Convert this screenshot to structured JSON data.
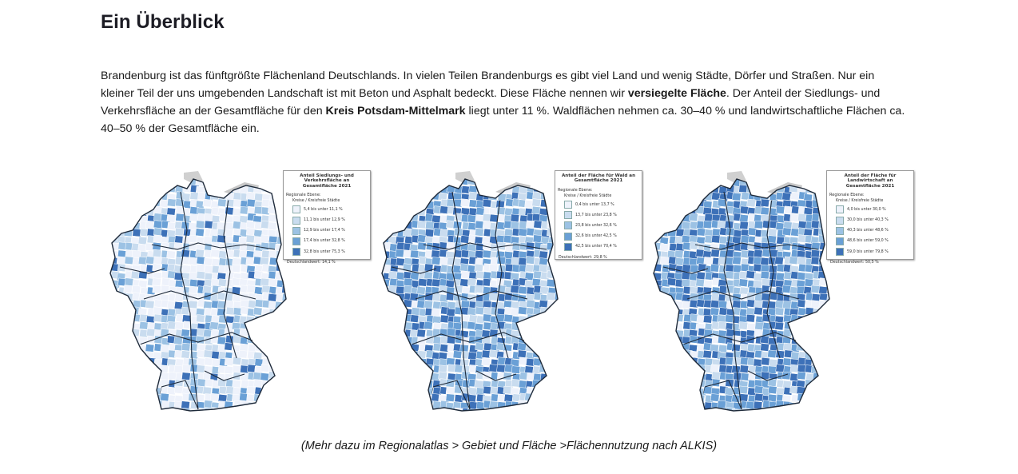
{
  "page": {
    "heading": "Ein Überblick",
    "intro": [
      {
        "text": "Brandenburg ist das fünftgrößte Flächenland Deutschlands. In vielen Teilen Brandenburgs es gibt viel Land und wenig Städte, Dörfer und Straßen. Nur ein kleiner Teil der uns umgebenden Landschaft ist mit Beton und Asphalt bedeckt. Diese Fläche nennen wir ",
        "bold": false
      },
      {
        "text": "versiegelte Fläche",
        "bold": true
      },
      {
        "text": ". Der Anteil der Siedlungs- und Verkehrsfläche an der Gesamtfläche für den ",
        "bold": false
      },
      {
        "text": "Kreis Potsdam-Mittelmark",
        "bold": true
      },
      {
        "text": " liegt unter 11 %. Waldflächen nehmen ca. 30–40 % und landwirtschaftliche Flächen ca. 40–50 % der Gesamtfläche ein.",
        "bold": false
      }
    ],
    "caption": "(Mehr dazu im Regionalatlas > Gebiet und Fläche >Flächennutzung nach ALKIS)"
  },
  "maps": [
    {
      "title": "Anteil Siedlungs- und Verkehrsfläche an Gesamtfläche 2021",
      "level_label": "Regionale Ebene:",
      "sub_label": "Kreise / Kreisfreie Städte",
      "classes": [
        {
          "label": "5,4 bis unter 11,1 %",
          "color": "#eef2fb"
        },
        {
          "label": "11,1 bis unter 12,9 %",
          "color": "#c9dcef"
        },
        {
          "label": "12,9 bis unter 17,4 %",
          "color": "#9cc2e4"
        },
        {
          "label": "17,4 bis unter 32,8 %",
          "color": "#6aa0d6"
        },
        {
          "label": "32,8 bis unter 75,3 %",
          "color": "#3d71b8"
        }
      ],
      "total": "Deutschlandwert: 14,1 %",
      "distribution": [
        0.46,
        0.2,
        0.16,
        0.12,
        0.06
      ]
    },
    {
      "title": "Anteil der Fläche für Wald an Gesamtfläche 2021",
      "level_label": "Regionale Ebene:",
      "sub_label": "Kreise / Kreisfreie Städte",
      "classes": [
        {
          "label": "0,4 bis unter 13,7 %",
          "color": "#eef2fb"
        },
        {
          "label": "13,7 bis unter 23,8 %",
          "color": "#c9dcef"
        },
        {
          "label": "23,8 bis unter 32,6 %",
          "color": "#9cc2e4"
        },
        {
          "label": "32,6 bis unter 42,5 %",
          "color": "#6aa0d6"
        },
        {
          "label": "42,5 bis unter 70,4 %",
          "color": "#3d71b8"
        }
      ],
      "total": "Deutschlandwert: 29,8 %",
      "distribution": [
        0.12,
        0.16,
        0.22,
        0.26,
        0.24
      ]
    },
    {
      "title": "Anteil der Fläche für Landwirtschaft an Gesamtfläche 2021",
      "level_label": "Regionale Ebene:",
      "sub_label": "Kreise / Kreisfreie Städte",
      "classes": [
        {
          "label": "4,0 bis unter 30,0 %",
          "color": "#eef2fb"
        },
        {
          "label": "30,0 bis unter 40,3 %",
          "color": "#c9dcef"
        },
        {
          "label": "40,3 bis unter 48,6 %",
          "color": "#9cc2e4"
        },
        {
          "label": "48,6 bis unter 59,0 %",
          "color": "#6aa0d6"
        },
        {
          "label": "59,0 bis unter 79,8 %",
          "color": "#3d71b8"
        }
      ],
      "total": "Deutschlandwert: 50,5 %",
      "distribution": [
        0.08,
        0.1,
        0.18,
        0.28,
        0.36
      ]
    }
  ]
}
